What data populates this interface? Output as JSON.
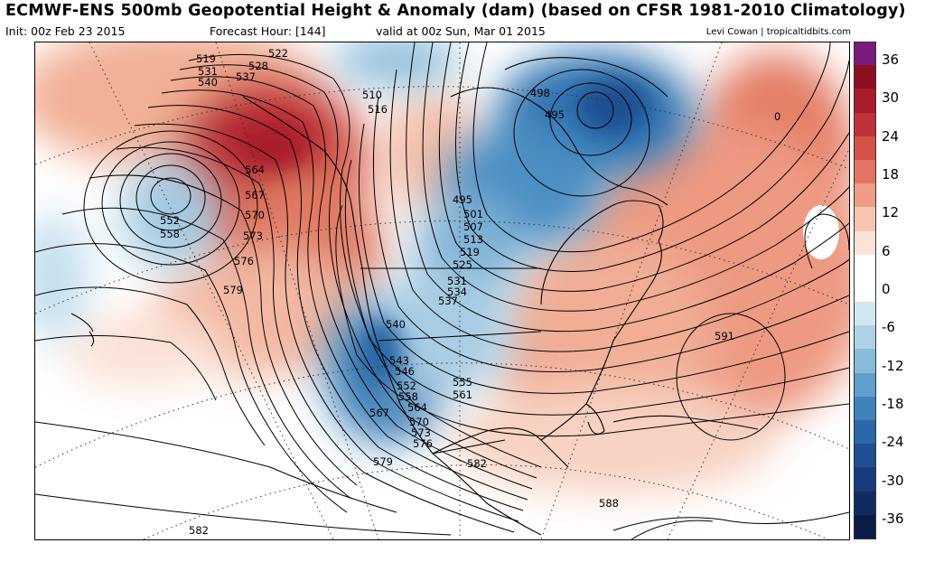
{
  "header": {
    "title": "ECMWF-ENS 500mb Geopotential Height & Anomaly (dam) (based on CFSR 1981-2010 Climatology)",
    "init": "Init: 00z Feb 23 2015",
    "forecast_hour": "Forecast Hour: [144]",
    "valid": "valid at 00z Sun, Mar 01 2015",
    "credit": "Levi Cowan | tropicaltidbits.com"
  },
  "colorbar": {
    "tick_labels": [
      "36",
      "30",
      "24",
      "18",
      "12",
      "6",
      "0",
      "-6",
      "-12",
      "-18",
      "-24",
      "-30",
      "-36"
    ],
    "colors": [
      "#7a1a7a",
      "#8c1020",
      "#a81c2c",
      "#c0323a",
      "#d45248",
      "#e37560",
      "#ee9c84",
      "#f6c5b2",
      "#fbe3d8",
      "#ffffff",
      "#ffffff",
      "#d2e6f0",
      "#afd1e6",
      "#88bad9",
      "#5e9fcb",
      "#3f83ba",
      "#2a68a7",
      "#1f5092",
      "#183c7a",
      "#112a60",
      "#0b1c48"
    ]
  },
  "contour_labels": [
    "519",
    "522",
    "528",
    "531",
    "537",
    "540",
    "510",
    "516",
    "498",
    "495",
    "564",
    "567",
    "570",
    "573",
    "576",
    "579",
    "552",
    "558",
    "495",
    "501",
    "507",
    "513",
    "519",
    "525",
    "531",
    "534",
    "537",
    "540",
    "543",
    "546",
    "552",
    "555",
    "558",
    "561",
    "564",
    "567",
    "570",
    "573",
    "576",
    "579",
    "582",
    "588",
    "591",
    "582",
    "0"
  ]
}
